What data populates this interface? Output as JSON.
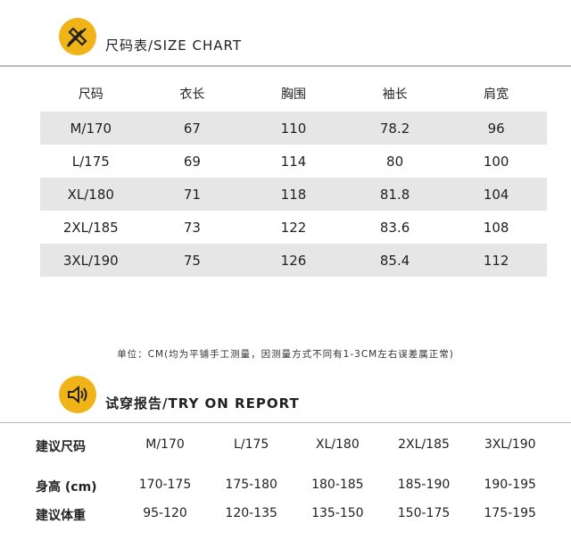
{
  "size_chart": {
    "title": "尺码表/SIZE CHART",
    "icon": "pencil-ruler-icon",
    "headers": [
      "尺码",
      "衣长",
      "胸围",
      "袖长",
      "肩宽"
    ],
    "rows": [
      [
        "M/170",
        "67",
        "110",
        "78.2",
        "96"
      ],
      [
        "L/175",
        "69",
        "114",
        "80",
        "100"
      ],
      [
        "XL/180",
        "71",
        "118",
        "81.8",
        "104"
      ],
      [
        "2XL/185",
        "73",
        "122",
        "83.6",
        "108"
      ],
      [
        "3XL/190",
        "75",
        "126",
        "85.4",
        "112"
      ]
    ],
    "note": "单位：CM(均为平铺手工测量，因测量方式不同有1-3CM左右误差属正常)"
  },
  "try_on": {
    "title": "试穿报告/TRY ON REPORT",
    "icon": "speaker-icon",
    "rows": [
      [
        "建议尺码",
        "M/170",
        "L/175",
        "XL/180",
        "2XL/185",
        "3XL/190"
      ],
      [
        "身高 (cm)",
        "170-175",
        "175-180",
        "180-185",
        "185-190",
        "190-195"
      ],
      [
        "建议体重",
        "95-120",
        "120-135",
        "135-150",
        "150-175",
        "175-195"
      ]
    ]
  },
  "colors": {
    "accent": "#f0b418",
    "row_shade": "#e6e6e6"
  }
}
